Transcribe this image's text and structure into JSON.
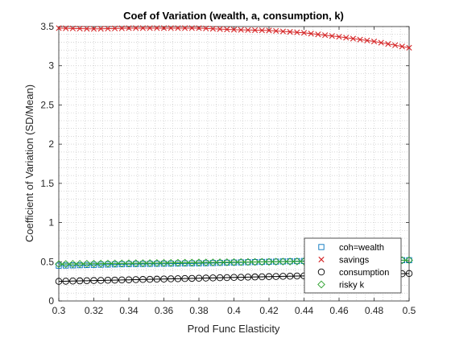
{
  "chart_data": {
    "type": "line",
    "title": "Coef of Variation (wealth, a, consumption, k)",
    "xlabel": "Prod Func Elasticity",
    "ylabel": "Coefficient of Variation (SD/Mean)",
    "xlim": [
      0.3,
      0.5
    ],
    "ylim": [
      0,
      3.5
    ],
    "xticks": [
      "0.3",
      "0.32",
      "0.34",
      "0.36",
      "0.38",
      "0.4",
      "0.42",
      "0.44",
      "0.46",
      "0.48",
      "0.5"
    ],
    "yticks": [
      "0",
      "0.5",
      "1",
      "1.5",
      "2",
      "2.5",
      "3",
      "3.5"
    ],
    "grid": "major and minor dotted",
    "legend_position": "bottom-right",
    "series": [
      {
        "name": "coh=wealth",
        "marker": "square",
        "color": "#0072bd",
        "x": [
          0.3,
          0.32,
          0.34,
          0.36,
          0.38,
          0.4,
          0.42,
          0.44,
          0.46,
          0.48,
          0.5
        ],
        "y": [
          0.45,
          0.46,
          0.47,
          0.475,
          0.48,
          0.49,
          0.5,
          0.51,
          0.515,
          0.52,
          0.52
        ]
      },
      {
        "name": "savings",
        "marker": "x",
        "color": "#d62728",
        "x": [
          0.3,
          0.32,
          0.34,
          0.36,
          0.38,
          0.4,
          0.42,
          0.44,
          0.46,
          0.48,
          0.5
        ],
        "y": [
          3.48,
          3.47,
          3.48,
          3.48,
          3.48,
          3.46,
          3.45,
          3.42,
          3.37,
          3.31,
          3.23
        ]
      },
      {
        "name": "consumption",
        "marker": "circle",
        "color": "#000000",
        "x": [
          0.3,
          0.32,
          0.34,
          0.36,
          0.38,
          0.4,
          0.42,
          0.44,
          0.46,
          0.48,
          0.5
        ],
        "y": [
          0.25,
          0.26,
          0.27,
          0.28,
          0.29,
          0.3,
          0.31,
          0.32,
          0.33,
          0.34,
          0.35
        ]
      },
      {
        "name": "risky k",
        "marker": "diamond",
        "color": "#2ca02c",
        "x": [
          0.3,
          0.32,
          0.34,
          0.36,
          0.38,
          0.4,
          0.42,
          0.44,
          0.46,
          0.48,
          0.5
        ],
        "y": [
          0.47,
          0.475,
          0.48,
          0.485,
          0.49,
          0.495,
          0.5,
          0.505,
          0.51,
          0.515,
          0.52
        ]
      }
    ]
  }
}
